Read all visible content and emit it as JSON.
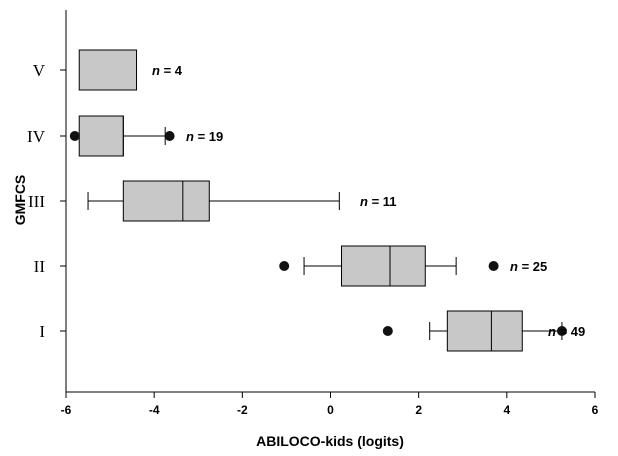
{
  "chart_data": {
    "type": "boxplot",
    "orientation": "horizontal",
    "xlabel": "ABILOCO-kids (logits)",
    "ylabel": "GMFCS",
    "xlim": [
      -6,
      6
    ],
    "xticks": [
      "-6",
      "-4",
      "-2",
      "0",
      "2",
      "4",
      "6"
    ],
    "colors": {
      "box_fill": "#c8c8c8",
      "stroke": "#000000"
    },
    "n_prefix": "n",
    "groups": [
      {
        "label": "V",
        "n_text": " = 4",
        "whisker_low": null,
        "q1": -5.7,
        "median": null,
        "q3": -4.4,
        "whisker_high": null,
        "outliers": []
      },
      {
        "label": "IV",
        "n_text": " = 19",
        "whisker_low": null,
        "q1": -5.7,
        "median": -4.7,
        "q3": -4.7,
        "whisker_high": -3.75,
        "outliers": [
          -5.8,
          -3.65
        ]
      },
      {
        "label": "III",
        "n_text": " = 11",
        "whisker_low": -5.5,
        "q1": -4.7,
        "median": -3.35,
        "q3": -2.75,
        "whisker_high": 0.2,
        "outliers": []
      },
      {
        "label": "II",
        "n_text": " = 25",
        "whisker_low": -0.6,
        "q1": 0.25,
        "median": 1.35,
        "q3": 2.15,
        "whisker_high": 2.85,
        "outliers": [
          -1.05,
          3.7
        ]
      },
      {
        "label": "I",
        "n_text": " = 49",
        "whisker_low": 2.25,
        "q1": 2.65,
        "median": 3.65,
        "q3": 4.35,
        "whisker_high": 5.25,
        "outliers": [
          1.3,
          5.25
        ]
      }
    ]
  }
}
